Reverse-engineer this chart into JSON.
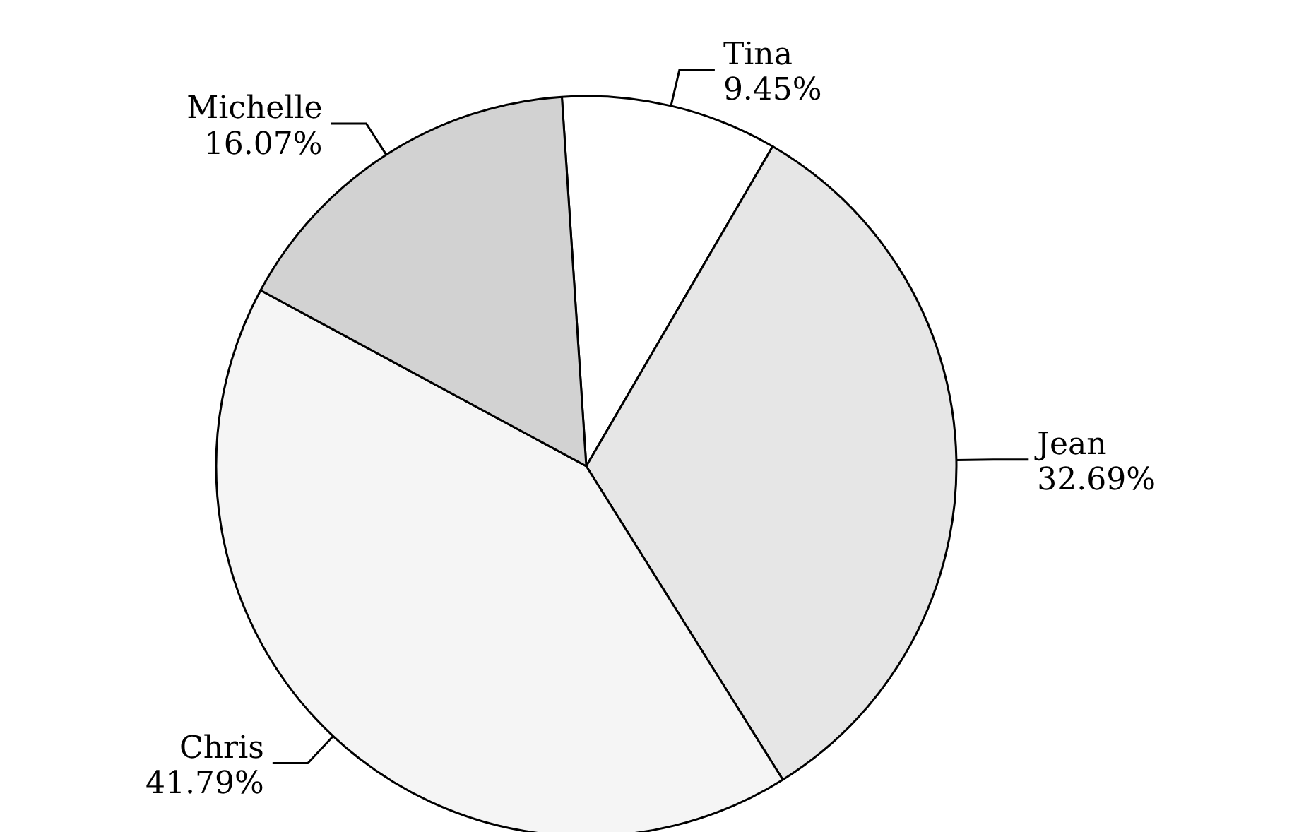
{
  "chart_data": {
    "type": "pie",
    "categories": [
      "Tina",
      "Jean",
      "Chris",
      "Michelle"
    ],
    "values": [
      9.45,
      32.69,
      41.79,
      16.07
    ],
    "value_labels": [
      "9.45%",
      "32.69%",
      "41.79%",
      "16.07%"
    ],
    "colors": [
      "#ffffff",
      "#e6e6e6",
      "#f5f5f5",
      "#d2d2d2"
    ],
    "legend": false
  }
}
